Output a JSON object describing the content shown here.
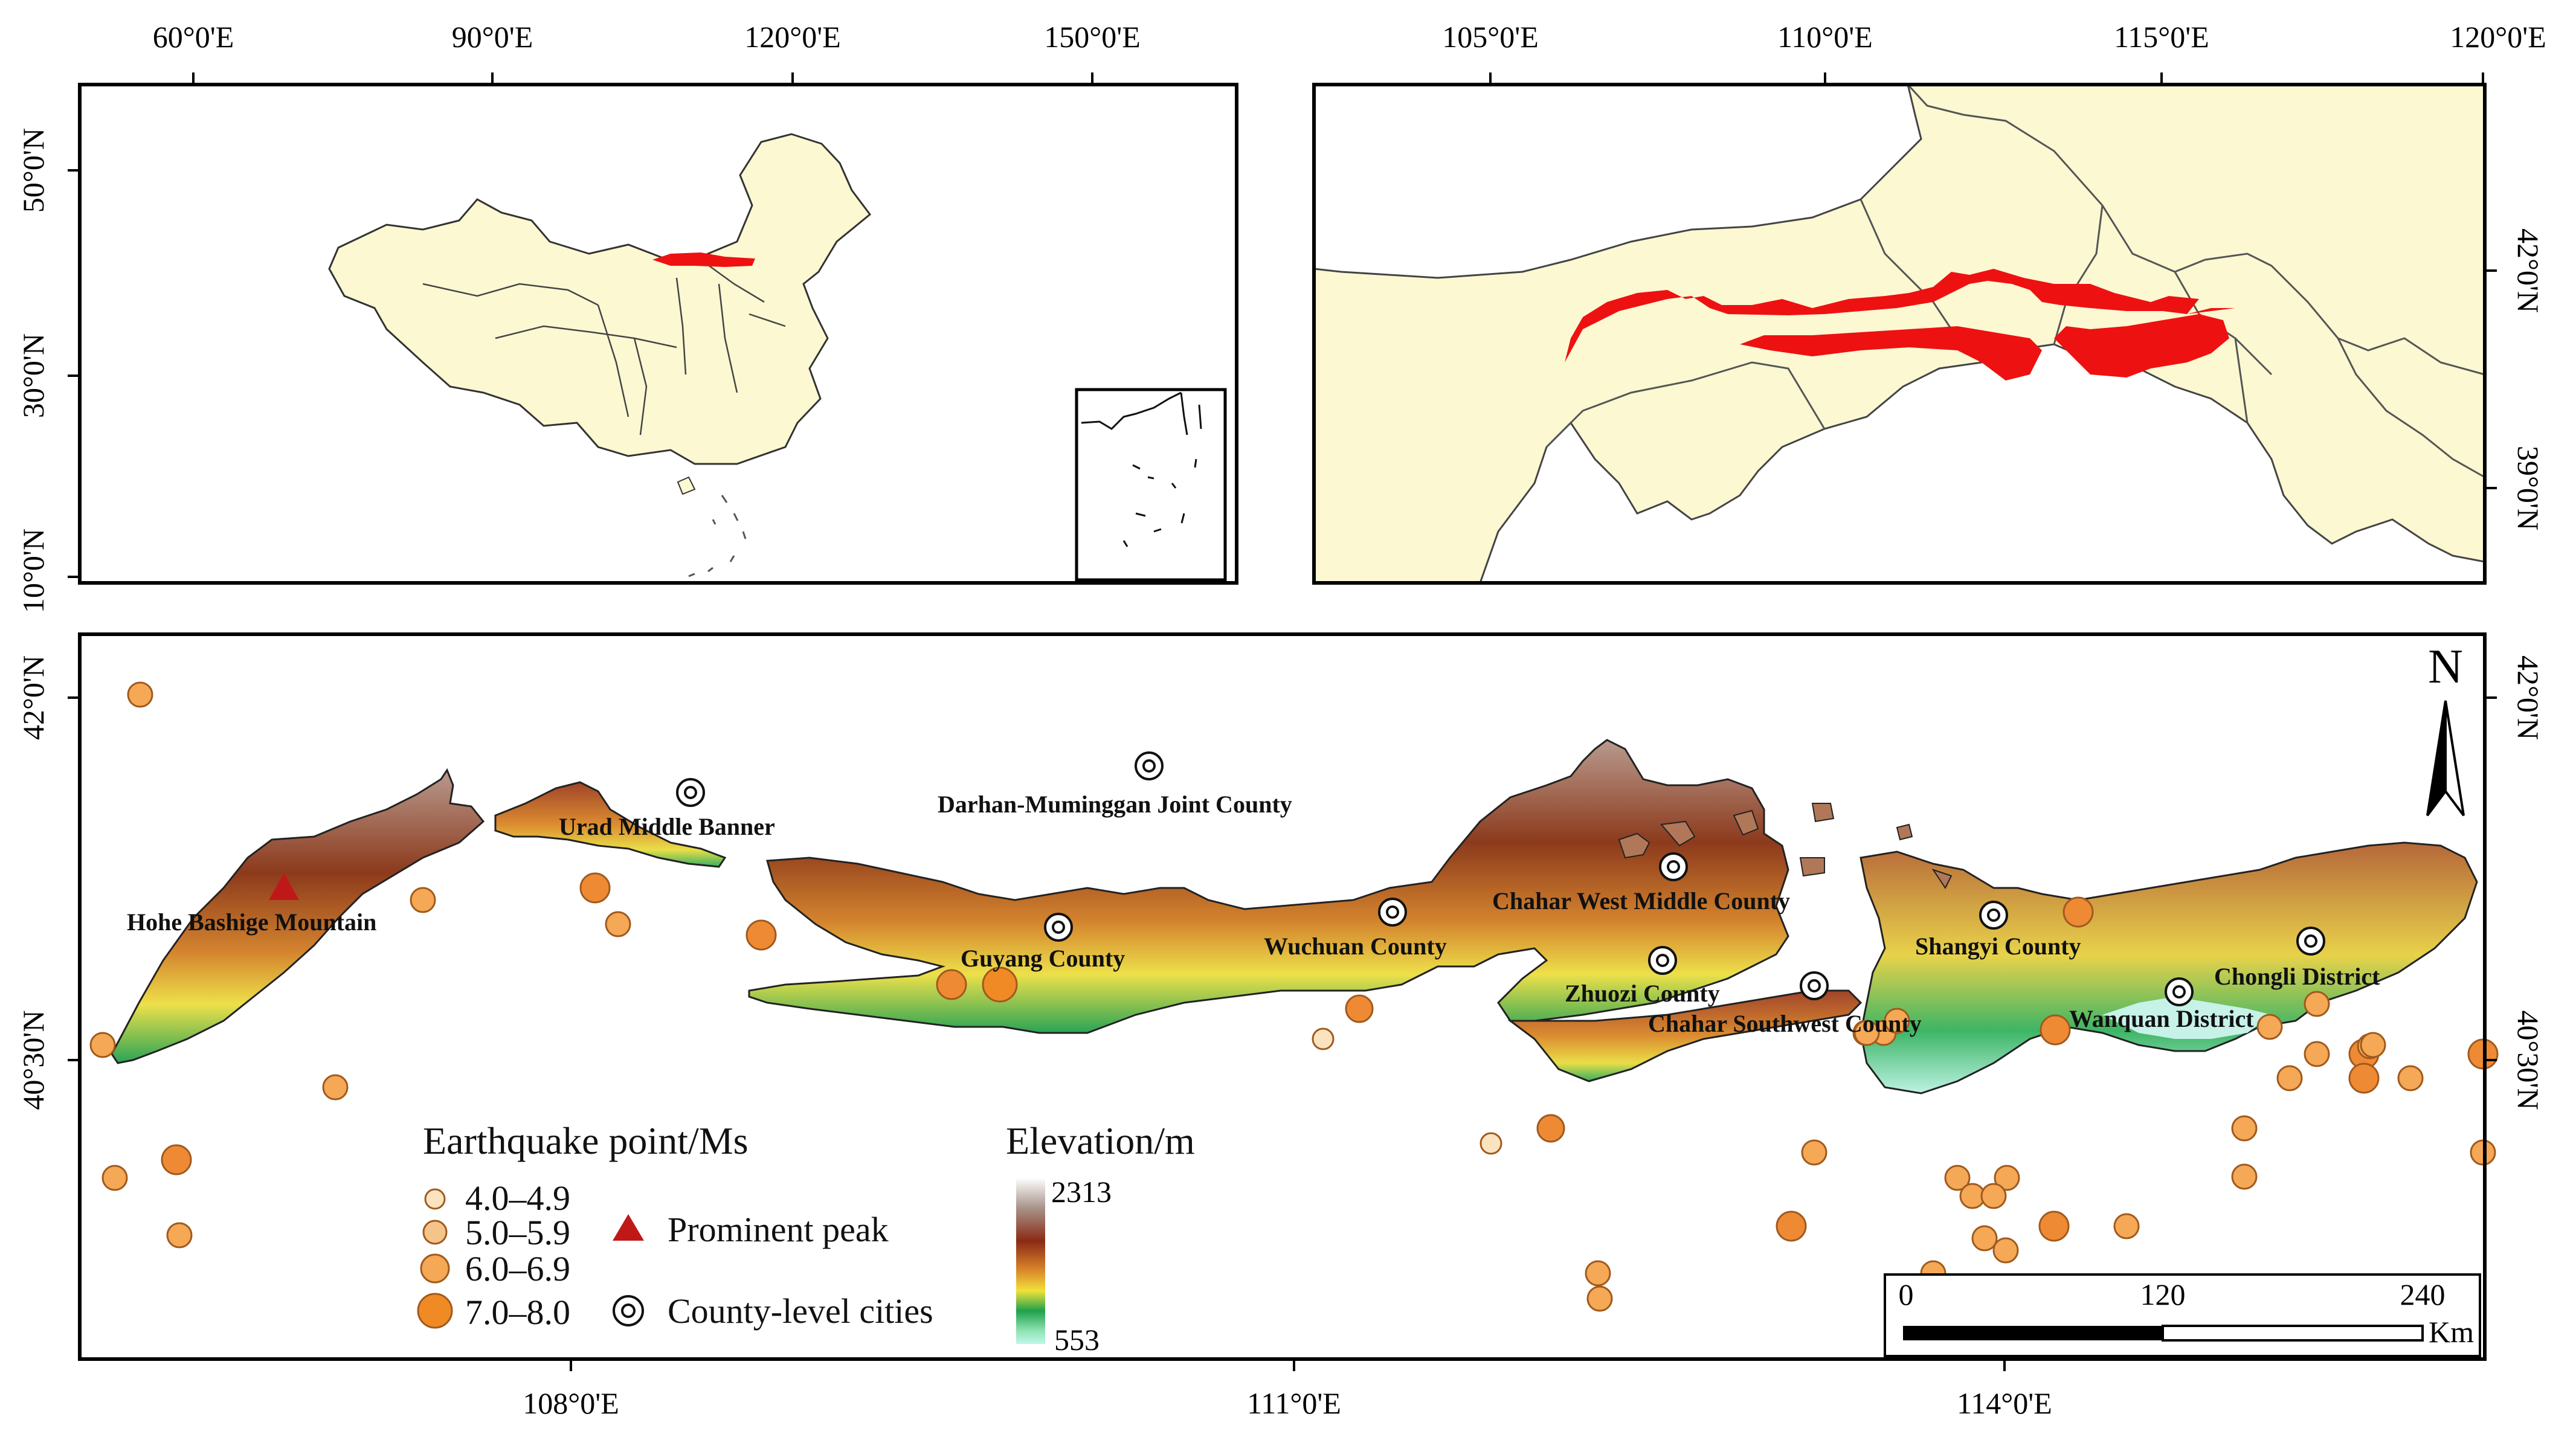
{
  "inset_china": {
    "top_ticks": [
      "60°0'E",
      "90°0'E",
      "120°0'E",
      "150°0'E"
    ],
    "left_ticks": [
      "50°0'N",
      "30°0'N",
      "10°0'N"
    ]
  },
  "inset_region": {
    "top_ticks": [
      "105°0'E",
      "110°0'E",
      "115°0'E",
      "120°0'E"
    ],
    "right_ticks": [
      "42°0'N",
      "39°0'N"
    ]
  },
  "main_map": {
    "bottom_ticks": [
      "108°0'E",
      "111°0'E",
      "114°0'E"
    ],
    "left_ticks": [
      "42°0'N",
      "40°30'N"
    ],
    "right_ticks": [
      "42°0'N",
      "40°30'N"
    ],
    "north_arrow_label": "N",
    "cities": [
      {
        "name": "Urad Middle Banner"
      },
      {
        "name": "Darhan-Muminggan Joint County"
      },
      {
        "name": "Guyang County"
      },
      {
        "name": "Wuchuan County"
      },
      {
        "name": "Chahar West Middle County"
      },
      {
        "name": "Zhuozi County"
      },
      {
        "name": "Chahar Southwest County"
      },
      {
        "name": "Shangyi County"
      },
      {
        "name": "Wanquan District"
      },
      {
        "name": "Chongli District"
      }
    ],
    "peak": {
      "name": "Hohe Bashige Mountain"
    },
    "scale_bar": {
      "labels": [
        "0",
        "120",
        "240"
      ],
      "unit": "Km"
    }
  },
  "legend": {
    "earthquake_title": "Earthquake point/Ms",
    "magnitudes": [
      "4.0–4.9",
      "5.0–5.9",
      "6.0–6.9",
      "7.0–8.0"
    ],
    "peak_label": "Prominent peak",
    "city_label": "County-level cities",
    "elevation_title": "Elevation/m",
    "elevation_max": "2313",
    "elevation_min": "553"
  },
  "colors": {
    "land": "#fbf8d2",
    "study_area_red": "#ee1111",
    "quake_fill": "#f5a855",
    "quake_stroke": "#a05a1e",
    "peak_red": "#c01818"
  }
}
